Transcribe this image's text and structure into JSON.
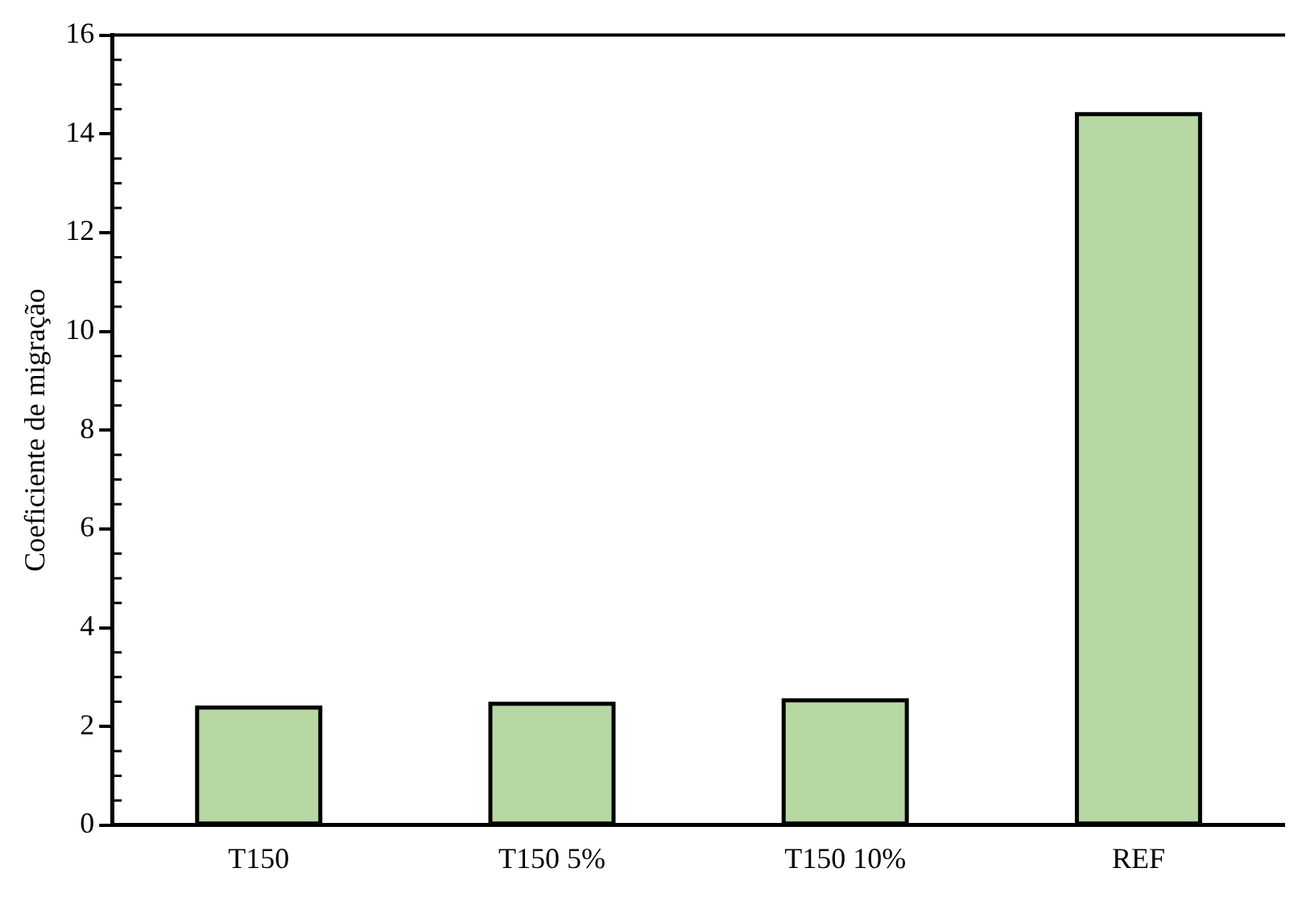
{
  "chart_data": {
    "type": "bar",
    "ylabel": "Coeficiente de migração",
    "categories": [
      "T150",
      "T150 5%",
      "T150 10%",
      "REF"
    ],
    "values": [
      2.38,
      2.46,
      2.53,
      14.4
    ],
    "color": "#b7d7a3",
    "ylim": [
      0,
      16
    ],
    "yticks": [
      0,
      2,
      4,
      6,
      8,
      10,
      12,
      14,
      16
    ],
    "grid": false,
    "legend": false
  }
}
